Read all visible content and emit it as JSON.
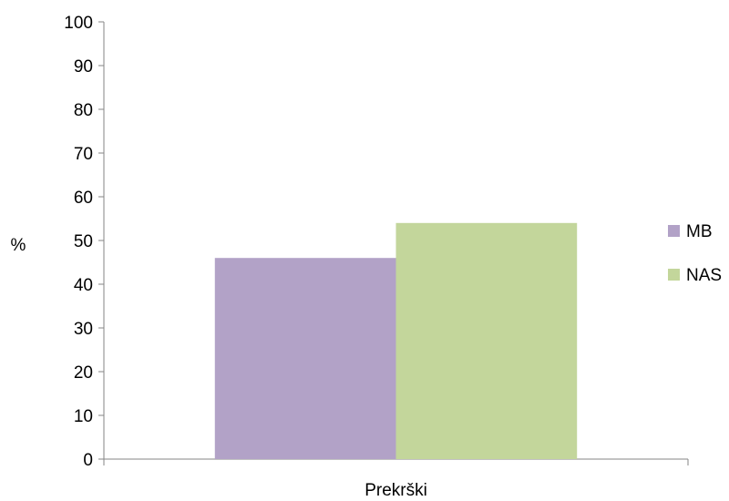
{
  "chart_data": {
    "type": "bar",
    "categories": [
      "Prekrški"
    ],
    "series": [
      {
        "name": "MB",
        "values": [
          46
        ],
        "color": "#b2a2c7"
      },
      {
        "name": "NAS",
        "values": [
          54
        ],
        "color": "#c3d69b"
      }
    ],
    "ylabel": "%",
    "ylim": [
      0,
      100
    ],
    "yticks": [
      0,
      10,
      20,
      30,
      40,
      50,
      60,
      70,
      80,
      90,
      100
    ],
    "grid": false,
    "legend": "right"
  }
}
